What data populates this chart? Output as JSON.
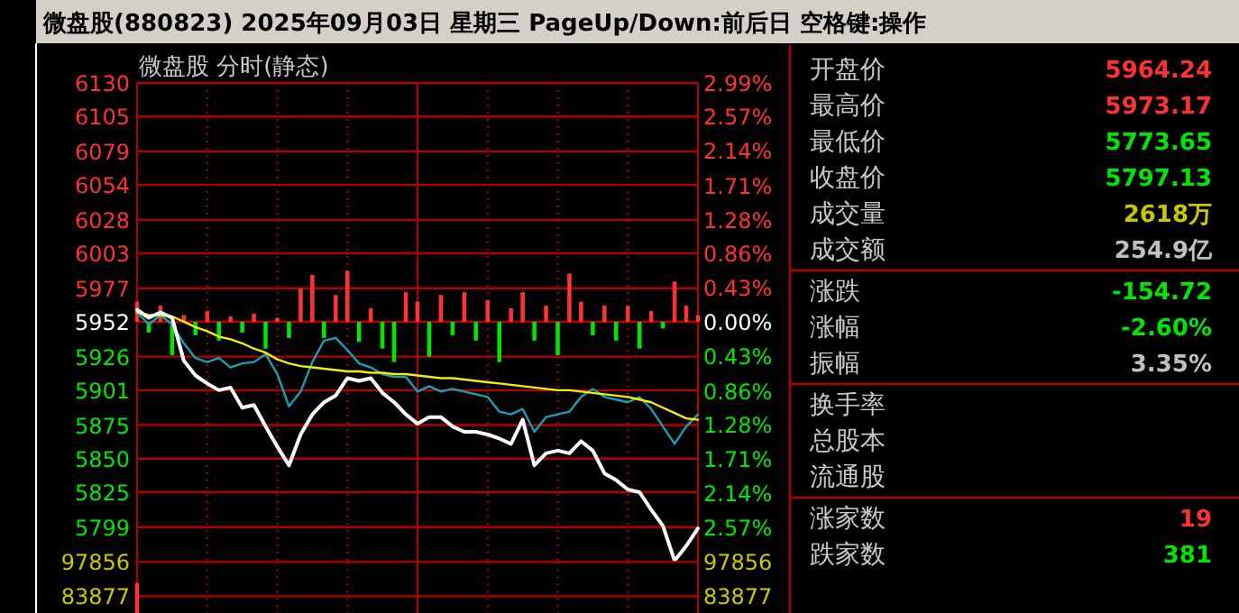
{
  "chart_data": [
    {
      "type": "line",
      "title": "微盘股(880823)  2025年09月03日 星期三 PageUp/Down:前后日 空格键:操作",
      "subtitle": "微盘股   分时(静态)",
      "categories": [
        null,
        null,
        null,
        null,
        null,
        null,
        null,
        null,
        null,
        null,
        null,
        null,
        null,
        null,
        null,
        null,
        null,
        null,
        null,
        null,
        null,
        null,
        null,
        null,
        null,
        null,
        null,
        null,
        null,
        null,
        null,
        null,
        null,
        null,
        null,
        null,
        null,
        null,
        null,
        null,
        null,
        null,
        null,
        null,
        null,
        null,
        null,
        null,
        null
      ],
      "ylim": [
        5773,
        6130
      ],
      "yticks": [
        6130,
        6105,
        6079,
        6054,
        6028,
        6003,
        5977,
        5952,
        5926,
        5901,
        5875,
        5850,
        5825,
        5799
      ],
      "y2lim": [
        -3.0,
        2.99
      ],
      "y2ticks": [
        {
          "value": 2.99,
          "label": "2.99%"
        },
        {
          "value": 2.57,
          "label": "2.57%"
        },
        {
          "value": 2.14,
          "label": "2.14%"
        },
        {
          "value": 1.71,
          "label": "1.71%"
        },
        {
          "value": 1.28,
          "label": "1.28%"
        },
        {
          "value": 0.86,
          "label": "0.86%"
        },
        {
          "value": 0.43,
          "label": "0.43%"
        },
        {
          "value": 0,
          "label": "0.00%"
        },
        {
          "value": -0.43,
          "label": "0.43%"
        },
        {
          "value": -0.86,
          "label": "0.86%"
        },
        {
          "value": -1.28,
          "label": "1.28%"
        },
        {
          "value": -1.71,
          "label": "1.71%"
        },
        {
          "value": -2.14,
          "label": "2.14%"
        },
        {
          "value": -2.57,
          "label": "2.57%"
        }
      ],
      "grid": true,
      "series": [
        {
          "type": "bar",
          "base": [
            5952,
            5952,
            5952,
            5952,
            5952,
            5952,
            5952,
            5952,
            5952,
            5952,
            5952,
            5952,
            5952,
            5952,
            5952,
            5952,
            5952,
            5952,
            5952,
            5952,
            5952,
            5952,
            5952,
            5952,
            5952,
            5952,
            5952,
            5952,
            5952,
            5952,
            5952,
            5952,
            5952,
            5952,
            5952,
            5952,
            5952,
            5952,
            5952,
            5952,
            5952,
            5952,
            5952,
            5952,
            5952,
            5952,
            5952,
            5952,
            5952
          ],
          "values": [
            15,
            -8,
            12,
            -25,
            5,
            -10,
            8,
            -14,
            4,
            -8,
            6,
            -20,
            3,
            -12,
            25,
            35,
            -12,
            20,
            38,
            -15,
            10,
            -20,
            -30,
            22,
            15,
            -26,
            20,
            -10,
            22,
            -14,
            16,
            -30,
            10,
            22,
            -14,
            12,
            -25,
            36,
            15,
            -10,
            12,
            -14,
            12,
            -20,
            8,
            -5,
            30,
            12,
            5
          ],
          "colors": [
            "#ff3232",
            "#00e600",
            "#ff3232",
            "#00e600",
            "#ff3232",
            "#00e600",
            "#ff3232",
            "#00e600",
            "#ff3232",
            "#00e600",
            "#ff3232",
            "#00e600",
            "#ff3232",
            "#00e600",
            "#ff3232",
            "#ff3232",
            "#00e600",
            "#ff3232",
            "#ff3232",
            "#00e600",
            "#ff3232",
            "#00e600",
            "#00e600",
            "#ff3232",
            "#ff3232",
            "#00e600",
            "#ff3232",
            "#00e600",
            "#ff3232",
            "#00e600",
            "#ff3232",
            "#00e600",
            "#ff3232",
            "#ff3232",
            "#00e600",
            "#ff3232",
            "#00e600",
            "#ff3232",
            "#ff3232",
            "#00e600",
            "#ff3232",
            "#00e600",
            "#ff3232",
            "#00e600",
            "#ff3232",
            "#00e600",
            "#ff3232",
            "#ff3232",
            "#ff3232"
          ]
        },
        {
          "type": "line",
          "color": "#19a0b4",
          "values": [
            5959,
            5950,
            5957,
            5950,
            5936,
            5925,
            5922,
            5925,
            5918,
            5921,
            5922,
            5928,
            5913,
            5889,
            5900,
            5922,
            5938,
            5940,
            5931,
            5921,
            5918,
            5913,
            5911,
            5911,
            5900,
            5904,
            5900,
            5902,
            5900,
            5898,
            5896,
            5885,
            5883,
            5887,
            5870,
            5881,
            5883,
            5885,
            5896,
            5902,
            5896,
            5894,
            5892,
            5896,
            5887,
            5874,
            5861,
            5874,
            5883
          ]
        },
        {
          "type": "line",
          "color": "#f0f000",
          "values": [
            5959,
            5957,
            5957,
            5956,
            5952,
            5948,
            5945,
            5941,
            5939,
            5936,
            5932,
            5929,
            5924,
            5921,
            5919,
            5918,
            5917,
            5916,
            5915,
            5915,
            5914,
            5914,
            5913,
            5913,
            5912,
            5911,
            5910,
            5910,
            5909,
            5908,
            5907,
            5906,
            5905,
            5904,
            5903,
            5902,
            5901,
            5901,
            5900,
            5899,
            5898,
            5897,
            5896,
            5894,
            5892,
            5888,
            5884,
            5880,
            5879
          ]
        },
        {
          "type": "line",
          "color": "#ffffff",
          "values": [
            5961,
            5955,
            5959,
            5955,
            5923,
            5912,
            5906,
            5901,
            5903,
            5888,
            5890,
            5874,
            5859,
            5845,
            5868,
            5883,
            5892,
            5897,
            5910,
            5908,
            5910,
            5899,
            5892,
            5883,
            5876,
            5881,
            5881,
            5874,
            5870,
            5870,
            5868,
            5865,
            5861,
            5879,
            5845,
            5854,
            5856,
            5854,
            5863,
            5856,
            5839,
            5834,
            5827,
            5825,
            5812,
            5800,
            5774,
            5785,
            5798
          ]
        }
      ]
    },
    {
      "type": "bar",
      "categories": [
        null,
        null,
        null,
        null,
        null,
        null,
        null,
        null,
        null,
        null,
        null,
        null,
        null,
        null,
        null,
        null,
        null,
        null,
        null,
        null,
        null,
        null,
        null,
        null,
        null,
        null,
        null,
        null,
        null,
        null,
        null,
        null,
        null,
        null,
        null,
        null,
        null,
        null,
        null,
        null,
        null,
        null,
        null,
        null,
        null,
        null,
        null,
        null,
        null
      ],
      "values": [
        89300,
        null,
        null,
        null,
        null,
        null,
        null,
        null,
        null,
        null,
        null,
        null,
        null,
        null,
        null,
        null,
        null,
        null,
        null,
        null,
        null,
        null,
        null,
        null,
        null,
        null,
        null,
        null,
        null,
        null,
        null,
        null,
        null,
        null,
        null,
        null,
        null,
        null,
        null,
        null,
        null,
        null,
        null,
        null,
        null,
        null,
        null,
        null,
        null
      ],
      "color": "#ff3232",
      "ylim": [
        77000,
        97856
      ],
      "yticks": [
        97856,
        83877
      ],
      "y2lim": [
        77000,
        97856
      ],
      "y2ticks": [
        97856,
        83877
      ],
      "grid": "x",
      "ref_lines": [
        {
          "axis": "y",
          "value": 97856,
          "color": "#b40000"
        },
        {
          "axis": "y",
          "value": 83877,
          "color": "#b40000"
        }
      ]
    },
    {
      "type": "other",
      "categories": [
        "开盘价",
        "最高价",
        "最低价",
        "收盘价",
        "成交量",
        "成交额",
        "涨跌",
        "涨幅",
        "振幅",
        "换手率",
        "总股本",
        "流通股",
        "涨家数",
        "跌家数"
      ],
      "value_labels": [
        "5964.24",
        "5973.17",
        "5773.65",
        "5797.13",
        "2618万",
        "254.9亿",
        "-154.72",
        "-2.60%",
        "3.35%",
        null,
        null,
        null,
        "19",
        "381"
      ],
      "colors": [
        "#ff3232",
        "#ff3232",
        "#00e600",
        "#00e600",
        "#c8c800",
        "#c0c0c0",
        "#00e600",
        "#00e600",
        "#c0c0c0",
        null,
        null,
        null,
        "#ff3232",
        "#00e600"
      ]
    }
  ]
}
